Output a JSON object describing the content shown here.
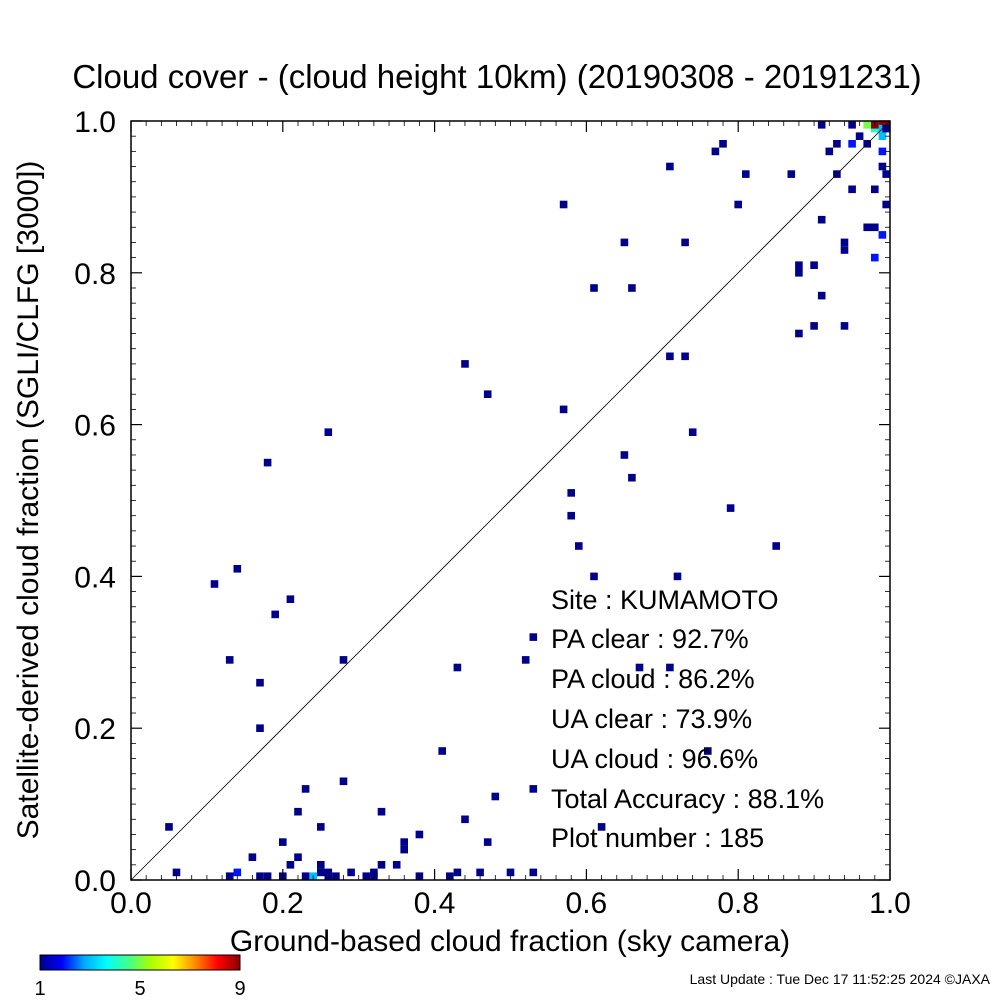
{
  "chart_data": {
    "type": "heatmap",
    "title": "Cloud cover - (cloud height 10km)  (20190308 - 20191231)",
    "xlabel": "Ground-based cloud fraction (sky camera)",
    "ylabel": "Satellite-derived cloud fraction (SGLI/CLFG [3000])",
    "xlim": [
      0.0,
      1.0
    ],
    "ylim": [
      0.0,
      1.0
    ],
    "xticks": [
      "0.0",
      "0.2",
      "0.4",
      "0.6",
      "0.8",
      "1.0"
    ],
    "yticks": [
      "0.0",
      "0.2",
      "0.4",
      "0.6",
      "0.8",
      "1.0"
    ],
    "grid": false,
    "reference_line": "1:1 diagonal",
    "colorbar": {
      "min": 1,
      "max": 9,
      "tick_labels": [
        "1",
        "5",
        "9"
      ],
      "colors": [
        "#00008b",
        "#0000ff",
        "#00aaff",
        "#00ffff",
        "#44ff88",
        "#aaff00",
        "#ffff00",
        "#ff8800",
        "#ff0000",
        "#8b0000"
      ]
    },
    "bin_size": 0.01,
    "points": [
      {
        "x": 0.05,
        "y": 0.07,
        "count": 1
      },
      {
        "x": 0.06,
        "y": 0.01,
        "count": 1
      },
      {
        "x": 0.11,
        "y": 0.39,
        "count": 1
      },
      {
        "x": 0.13,
        "y": 0.29,
        "count": 1
      },
      {
        "x": 0.14,
        "y": 0.41,
        "count": 1
      },
      {
        "x": 0.17,
        "y": 0.26,
        "count": 1
      },
      {
        "x": 0.17,
        "y": 0.2,
        "count": 1
      },
      {
        "x": 0.18,
        "y": 0.55,
        "count": 1
      },
      {
        "x": 0.19,
        "y": 0.35,
        "count": 1
      },
      {
        "x": 0.21,
        "y": 0.37,
        "count": 1
      },
      {
        "x": 0.26,
        "y": 0.59,
        "count": 1
      },
      {
        "x": 0.28,
        "y": 0.29,
        "count": 1
      },
      {
        "x": 0.28,
        "y": 0.13,
        "count": 1
      },
      {
        "x": 0.23,
        "y": 0.12,
        "count": 1
      },
      {
        "x": 0.22,
        "y": 0.09,
        "count": 1
      },
      {
        "x": 0.25,
        "y": 0.07,
        "count": 1
      },
      {
        "x": 0.2,
        "y": 0.05,
        "count": 1
      },
      {
        "x": 0.22,
        "y": 0.03,
        "count": 1
      },
      {
        "x": 0.16,
        "y": 0.03,
        "count": 1
      },
      {
        "x": 0.21,
        "y": 0.02,
        "count": 1
      },
      {
        "x": 0.14,
        "y": 0.01,
        "count": 2
      },
      {
        "x": 0.13,
        "y": 0.0,
        "count": 1
      },
      {
        "x": 0.17,
        "y": 0.0,
        "count": 1
      },
      {
        "x": 0.18,
        "y": 0.0,
        "count": 1
      },
      {
        "x": 0.2,
        "y": 0.0,
        "count": 1
      },
      {
        "x": 0.23,
        "y": 0.0,
        "count": 1
      },
      {
        "x": 0.24,
        "y": 0.0,
        "count": 3
      },
      {
        "x": 0.25,
        "y": 0.02,
        "count": 1
      },
      {
        "x": 0.25,
        "y": 0.01,
        "count": 1
      },
      {
        "x": 0.26,
        "y": 0.01,
        "count": 1
      },
      {
        "x": 0.26,
        "y": 0.0,
        "count": 1
      },
      {
        "x": 0.27,
        "y": 0.0,
        "count": 1
      },
      {
        "x": 0.29,
        "y": 0.01,
        "count": 1
      },
      {
        "x": 0.31,
        "y": 0.0,
        "count": 1
      },
      {
        "x": 0.32,
        "y": 0.0,
        "count": 1
      },
      {
        "x": 0.32,
        "y": 0.01,
        "count": 1
      },
      {
        "x": 0.33,
        "y": 0.02,
        "count": 1
      },
      {
        "x": 0.33,
        "y": 0.09,
        "count": 1
      },
      {
        "x": 0.35,
        "y": 0.02,
        "count": 1
      },
      {
        "x": 0.36,
        "y": 0.04,
        "count": 1
      },
      {
        "x": 0.36,
        "y": 0.05,
        "count": 1
      },
      {
        "x": 0.38,
        "y": 0.06,
        "count": 1
      },
      {
        "x": 0.38,
        "y": 0.0,
        "count": 1
      },
      {
        "x": 0.41,
        "y": 0.17,
        "count": 1
      },
      {
        "x": 0.42,
        "y": 0.0,
        "count": 1
      },
      {
        "x": 0.43,
        "y": 0.01,
        "count": 1
      },
      {
        "x": 0.43,
        "y": 0.28,
        "count": 1
      },
      {
        "x": 0.44,
        "y": 0.08,
        "count": 1
      },
      {
        "x": 0.44,
        "y": 0.68,
        "count": 1
      },
      {
        "x": 0.46,
        "y": 0.01,
        "count": 1
      },
      {
        "x": 0.47,
        "y": 0.05,
        "count": 1
      },
      {
        "x": 0.47,
        "y": 0.64,
        "count": 1
      },
      {
        "x": 0.48,
        "y": 0.11,
        "count": 1
      },
      {
        "x": 0.5,
        "y": 0.01,
        "count": 1
      },
      {
        "x": 0.52,
        "y": 0.29,
        "count": 1
      },
      {
        "x": 0.53,
        "y": 0.32,
        "count": 1
      },
      {
        "x": 0.53,
        "y": 0.12,
        "count": 1
      },
      {
        "x": 0.53,
        "y": 0.01,
        "count": 1
      },
      {
        "x": 0.57,
        "y": 0.62,
        "count": 1
      },
      {
        "x": 0.57,
        "y": 0.89,
        "count": 1
      },
      {
        "x": 0.58,
        "y": 0.51,
        "count": 1
      },
      {
        "x": 0.58,
        "y": 0.48,
        "count": 1
      },
      {
        "x": 0.59,
        "y": 0.44,
        "count": 1
      },
      {
        "x": 0.61,
        "y": 0.4,
        "count": 1
      },
      {
        "x": 0.61,
        "y": 0.78,
        "count": 1
      },
      {
        "x": 0.62,
        "y": 0.07,
        "count": 1
      },
      {
        "x": 0.65,
        "y": 0.84,
        "count": 1
      },
      {
        "x": 0.65,
        "y": 0.56,
        "count": 1
      },
      {
        "x": 0.66,
        "y": 0.53,
        "count": 1
      },
      {
        "x": 0.66,
        "y": 0.78,
        "count": 1
      },
      {
        "x": 0.67,
        "y": 0.28,
        "count": 1
      },
      {
        "x": 0.71,
        "y": 0.94,
        "count": 1
      },
      {
        "x": 0.71,
        "y": 0.69,
        "count": 1
      },
      {
        "x": 0.71,
        "y": 0.28,
        "count": 1
      },
      {
        "x": 0.72,
        "y": 0.4,
        "count": 1
      },
      {
        "x": 0.73,
        "y": 0.84,
        "count": 1
      },
      {
        "x": 0.73,
        "y": 0.69,
        "count": 1
      },
      {
        "x": 0.74,
        "y": 0.59,
        "count": 1
      },
      {
        "x": 0.76,
        "y": 0.17,
        "count": 1
      },
      {
        "x": 0.77,
        "y": 0.96,
        "count": 1
      },
      {
        "x": 0.78,
        "y": 0.97,
        "count": 1
      },
      {
        "x": 0.79,
        "y": 0.49,
        "count": 1
      },
      {
        "x": 0.8,
        "y": 0.89,
        "count": 1
      },
      {
        "x": 0.81,
        "y": 0.93,
        "count": 1
      },
      {
        "x": 0.85,
        "y": 0.44,
        "count": 1
      },
      {
        "x": 0.87,
        "y": 0.93,
        "count": 1
      },
      {
        "x": 0.88,
        "y": 0.81,
        "count": 1
      },
      {
        "x": 0.88,
        "y": 0.8,
        "count": 1
      },
      {
        "x": 0.88,
        "y": 0.72,
        "count": 1
      },
      {
        "x": 0.9,
        "y": 0.81,
        "count": 1
      },
      {
        "x": 0.9,
        "y": 0.73,
        "count": 1
      },
      {
        "x": 0.91,
        "y": 0.87,
        "count": 1
      },
      {
        "x": 0.91,
        "y": 0.77,
        "count": 1
      },
      {
        "x": 0.91,
        "y": 1.0,
        "count": 1
      },
      {
        "x": 0.92,
        "y": 0.96,
        "count": 1
      },
      {
        "x": 0.93,
        "y": 0.97,
        "count": 1
      },
      {
        "x": 0.93,
        "y": 0.93,
        "count": 1
      },
      {
        "x": 0.94,
        "y": 0.84,
        "count": 1
      },
      {
        "x": 0.94,
        "y": 0.83,
        "count": 1
      },
      {
        "x": 0.94,
        "y": 0.73,
        "count": 1
      },
      {
        "x": 0.95,
        "y": 0.91,
        "count": 1
      },
      {
        "x": 0.95,
        "y": 0.97,
        "count": 2
      },
      {
        "x": 0.95,
        "y": 1.0,
        "count": 1
      },
      {
        "x": 0.96,
        "y": 0.98,
        "count": 1
      },
      {
        "x": 0.97,
        "y": 0.97,
        "count": 1
      },
      {
        "x": 0.97,
        "y": 0.86,
        "count": 1
      },
      {
        "x": 0.97,
        "y": 1.0,
        "count": 5
      },
      {
        "x": 0.98,
        "y": 0.91,
        "count": 1
      },
      {
        "x": 0.98,
        "y": 0.86,
        "count": 1
      },
      {
        "x": 0.98,
        "y": 0.82,
        "count": 2
      },
      {
        "x": 0.98,
        "y": 0.99,
        "count": 4
      },
      {
        "x": 0.98,
        "y": 1.0,
        "count": 9
      },
      {
        "x": 0.99,
        "y": 1.0,
        "count": 9
      },
      {
        "x": 0.99,
        "y": 0.99,
        "count": 3
      },
      {
        "x": 0.99,
        "y": 0.98,
        "count": 3
      },
      {
        "x": 0.99,
        "y": 0.96,
        "count": 2
      },
      {
        "x": 0.99,
        "y": 0.94,
        "count": 1
      },
      {
        "x": 0.99,
        "y": 0.85,
        "count": 2
      },
      {
        "x": 1.0,
        "y": 1.0,
        "count": 9
      },
      {
        "x": 1.0,
        "y": 0.99,
        "count": 1
      },
      {
        "x": 1.0,
        "y": 0.93,
        "count": 1
      },
      {
        "x": 1.0,
        "y": 0.89,
        "count": 1
      }
    ]
  },
  "stats": {
    "site": "Site : KUMAMOTO",
    "pa_clear": "PA clear :  92.7%",
    "pa_cloud": "PA cloud :  86.2%",
    "ua_clear": "UA clear :  73.9%",
    "ua_cloud": "UA cloud :  96.6%",
    "total_accuracy": "Total Accuracy :  88.1%",
    "plot_number": "Plot number :       185"
  },
  "footer": {
    "last_update": "Last Update : Tue Dec 17 11:52:25 2024  ©JAXA"
  }
}
